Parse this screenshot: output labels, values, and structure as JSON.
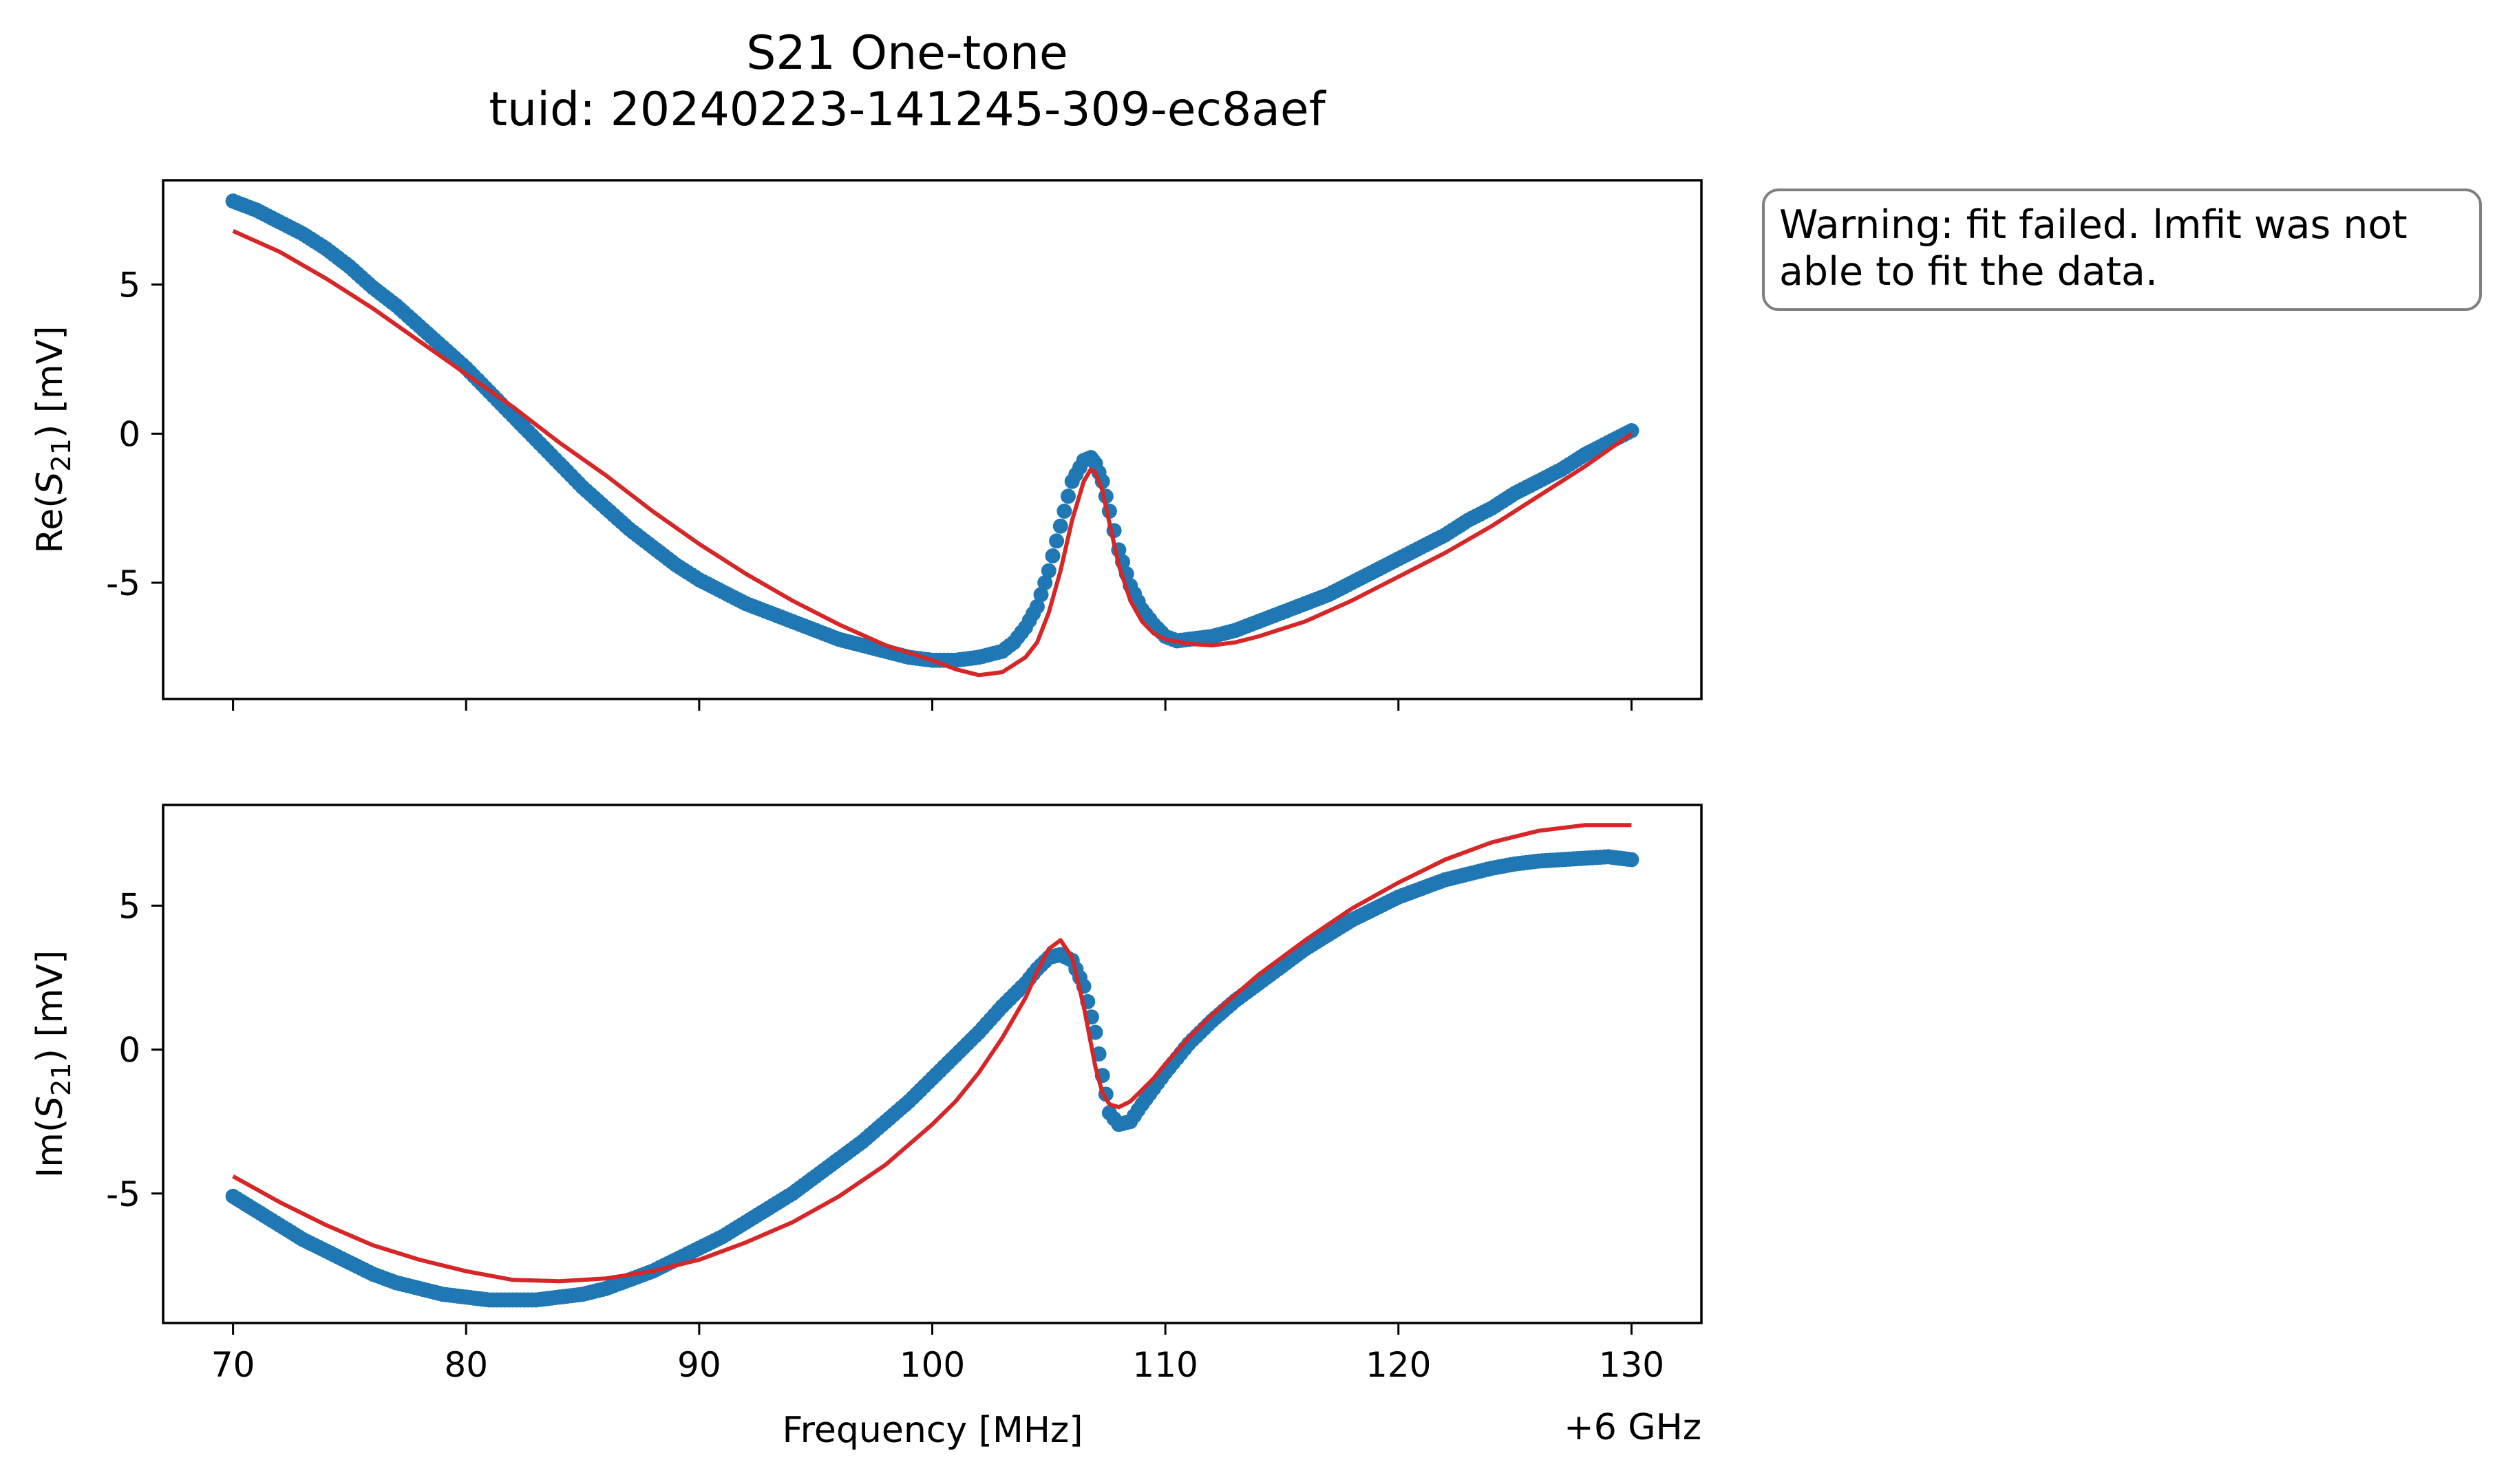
{
  "figure": {
    "title_line1": "S21 One-tone",
    "title_line2": "tuid: 20240223-141245-309-ec8aef",
    "note_line1": "Warning: fit failed. lmfit was not",
    "note_line2": "able to fit the data.",
    "offset_label": "+6 GHz"
  },
  "colors": {
    "data": "#1f77b4",
    "fit": "#d62728"
  },
  "chart_data": [
    {
      "type": "scatter",
      "panel": "top",
      "ylabel_prefix": "Re(",
      "ylabel_symbol": "S",
      "ylabel_sub": "21",
      "ylabel_suffix": ") [mV]",
      "xlim": [
        67,
        133
      ],
      "ylim": [
        -8.9,
        8.5
      ],
      "x_ticks": [
        70,
        80,
        90,
        100,
        110,
        120,
        130
      ],
      "y_ticks": [
        5,
        0,
        -5
      ],
      "y_tick_labels": [
        "5",
        "0",
        "-5"
      ],
      "series": [
        {
          "kind": "data",
          "x": [
            70,
            71,
            72,
            73,
            74,
            75,
            76,
            77,
            78,
            79,
            80,
            81,
            82,
            83,
            84,
            85,
            86,
            87,
            88,
            89,
            90,
            91,
            92,
            93,
            94,
            95,
            96,
            97,
            98,
            99,
            100,
            101,
            102,
            103,
            103.5,
            104,
            104.5,
            105,
            105.5,
            106,
            106.5,
            106.8,
            107,
            107.3,
            107.6,
            108,
            108.5,
            109,
            109.5,
            110,
            110.5,
            111,
            112,
            113,
            114,
            115,
            116,
            117,
            118,
            119,
            120,
            121,
            122,
            123,
            124,
            125,
            126,
            127,
            128,
            129,
            130
          ],
          "y": [
            7.8,
            7.5,
            7.1,
            6.7,
            6.2,
            5.6,
            4.9,
            4.3,
            3.6,
            2.9,
            2.2,
            1.4,
            0.6,
            -0.2,
            -1.0,
            -1.8,
            -2.5,
            -3.2,
            -3.8,
            -4.4,
            -4.9,
            -5.3,
            -5.7,
            -6.0,
            -6.3,
            -6.6,
            -6.9,
            -7.1,
            -7.3,
            -7.5,
            -7.6,
            -7.6,
            -7.5,
            -7.3,
            -7.0,
            -6.5,
            -5.8,
            -4.6,
            -3.1,
            -1.6,
            -0.9,
            -0.8,
            -1.0,
            -1.6,
            -2.6,
            -3.9,
            -5.1,
            -5.9,
            -6.4,
            -6.8,
            -6.95,
            -6.9,
            -6.8,
            -6.6,
            -6.3,
            -6.0,
            -5.7,
            -5.4,
            -5.0,
            -4.6,
            -4.2,
            -3.8,
            -3.4,
            -2.9,
            -2.5,
            -2.0,
            -1.6,
            -1.2,
            -0.7,
            -0.3,
            0.1
          ]
        },
        {
          "kind": "fit",
          "x": [
            70,
            72,
            74,
            76,
            78,
            80,
            82,
            84,
            86,
            88,
            90,
            92,
            94,
            96,
            98,
            100,
            101,
            102,
            103,
            104,
            104.5,
            105,
            105.5,
            106,
            106.5,
            106.8,
            107,
            107.3,
            107.6,
            108,
            108.5,
            109,
            109.5,
            110,
            111,
            112,
            113,
            114,
            116,
            118,
            120,
            122,
            124,
            126,
            128,
            130
          ],
          "y": [
            6.8,
            6.1,
            5.2,
            4.2,
            3.1,
            2.0,
            0.9,
            -0.3,
            -1.4,
            -2.6,
            -3.7,
            -4.7,
            -5.6,
            -6.4,
            -7.1,
            -7.6,
            -7.9,
            -8.1,
            -8.0,
            -7.5,
            -7.0,
            -6.0,
            -4.6,
            -2.9,
            -1.6,
            -1.2,
            -1.3,
            -1.9,
            -3.0,
            -4.4,
            -5.6,
            -6.3,
            -6.7,
            -6.9,
            -7.05,
            -7.1,
            -7.0,
            -6.8,
            -6.3,
            -5.6,
            -4.8,
            -4.0,
            -3.1,
            -2.1,
            -1.1,
            0.0
          ]
        }
      ]
    },
    {
      "type": "scatter",
      "panel": "bottom",
      "ylabel_prefix": "Im(",
      "ylabel_symbol": "S",
      "ylabel_sub": "21",
      "ylabel_suffix": ") [mV]",
      "xlabel": "Frequency [MHz]",
      "xlim": [
        67,
        133
      ],
      "ylim": [
        -9.5,
        8.5
      ],
      "x_ticks": [
        70,
        80,
        90,
        100,
        110,
        120,
        130
      ],
      "x_tick_labels": [
        "70",
        "80",
        "90",
        "100",
        "110",
        "120",
        "130"
      ],
      "y_ticks": [
        5,
        0,
        -5
      ],
      "y_tick_labels": [
        "5",
        "0",
        "-5"
      ],
      "series": [
        {
          "kind": "data",
          "x": [
            70,
            71,
            72,
            73,
            74,
            75,
            76,
            77,
            78,
            79,
            80,
            81,
            82,
            83,
            84,
            85,
            86,
            87,
            88,
            89,
            90,
            91,
            92,
            93,
            94,
            95,
            96,
            97,
            98,
            99,
            100,
            101,
            102,
            103,
            104,
            104.5,
            105,
            105.5,
            106,
            106.5,
            107,
            107.3,
            107.6,
            108,
            108.5,
            109,
            110,
            111,
            112,
            113,
            114,
            115,
            116,
            117,
            118,
            119,
            120,
            121,
            122,
            123,
            124,
            125,
            126,
            127,
            128,
            129,
            130
          ],
          "y": [
            -5.1,
            -5.6,
            -6.1,
            -6.6,
            -7.0,
            -7.4,
            -7.8,
            -8.1,
            -8.3,
            -8.5,
            -8.6,
            -8.7,
            -8.7,
            -8.7,
            -8.6,
            -8.5,
            -8.3,
            -8.0,
            -7.7,
            -7.3,
            -6.9,
            -6.5,
            -6.0,
            -5.5,
            -5.0,
            -4.4,
            -3.8,
            -3.2,
            -2.5,
            -1.8,
            -1.0,
            -0.2,
            0.6,
            1.5,
            2.3,
            2.8,
            3.2,
            3.3,
            3.1,
            2.2,
            0.6,
            -0.9,
            -2.2,
            -2.6,
            -2.5,
            -1.9,
            -0.8,
            0.2,
            1.0,
            1.7,
            2.3,
            2.9,
            3.5,
            4.0,
            4.5,
            4.9,
            5.3,
            5.6,
            5.9,
            6.1,
            6.3,
            6.45,
            6.55,
            6.6,
            6.65,
            6.7,
            6.6
          ]
        },
        {
          "kind": "fit",
          "x": [
            70,
            72,
            74,
            76,
            78,
            80,
            82,
            84,
            86,
            88,
            90,
            92,
            94,
            96,
            98,
            100,
            101,
            102,
            103,
            104,
            104.5,
            105,
            105.5,
            106,
            106.5,
            107,
            107.3,
            107.6,
            108,
            108.5,
            109,
            109.5,
            110,
            111,
            112,
            113,
            114,
            116,
            118,
            120,
            122,
            124,
            126,
            128,
            130
          ],
          "y": [
            -4.4,
            -5.3,
            -6.1,
            -6.8,
            -7.3,
            -7.7,
            -8.0,
            -8.05,
            -7.95,
            -7.7,
            -7.3,
            -6.7,
            -6.0,
            -5.1,
            -4.0,
            -2.6,
            -1.8,
            -0.8,
            0.4,
            1.8,
            2.7,
            3.5,
            3.8,
            3.2,
            1.5,
            -0.6,
            -1.5,
            -1.9,
            -2.0,
            -1.8,
            -1.4,
            -1.0,
            -0.5,
            0.4,
            1.2,
            1.9,
            2.6,
            3.8,
            4.9,
            5.8,
            6.6,
            7.2,
            7.6,
            7.8,
            7.8
          ]
        }
      ]
    }
  ]
}
